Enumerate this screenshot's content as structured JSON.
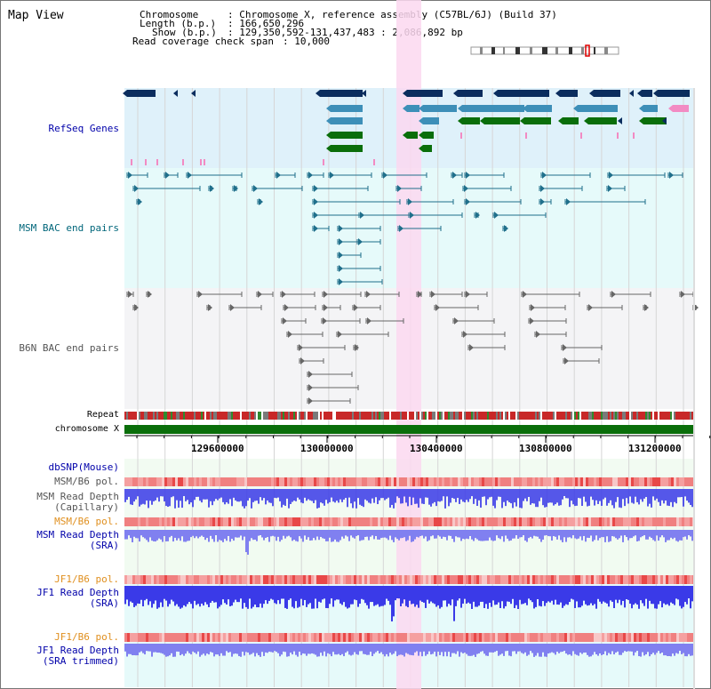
{
  "title": "Map View",
  "header": {
    "chromosome_key": "Chromosome",
    "chromosome_val": ": Chromosome X, reference assembly (C57BL/6J) (Build 37)",
    "length_key": "Length (b.p.)",
    "length_val": ": 166,650,296",
    "show_key": "Show (b.p.)",
    "show_val": ": 129,350,592-131,437,483 : 2,086,892 bp",
    "coverage_key": "Read coverage check span",
    "coverage_val": ": 10,000"
  },
  "tracks": {
    "refseq": "RefSeq Genes",
    "msm_bac": "MSM BAC end pairs",
    "b6n_bac": "B6N BAC end pairs",
    "repeat": "Repeat",
    "chromosome": "chromosome X",
    "dbsnp": "dbSNP(Mouse)",
    "msm_b6_pol_1": "MSM/B6 pol.",
    "msm_depth_cap_1": "MSM Read Depth",
    "msm_depth_cap_2": "(Capillary)",
    "msm_b6_pol_2": "MSM/B6 pol.",
    "msm_depth_sra_1": "MSM Read Depth",
    "msm_depth_sra_2": "(SRA)",
    "jf1_b6_pol_1": "JF1/B6 pol.",
    "jf1_depth_sra_1": "JF1 Read Depth",
    "jf1_depth_sra_2": "(SRA)",
    "jf1_b6_pol_2": "JF1/B6 pol.",
    "jf1_depth_trim_1": "JF1 Read Depth",
    "jf1_depth_trim_2": "(SRA trimmed)"
  },
  "axis": {
    "ticks": [
      "129600000",
      "130000000",
      "130400000",
      "130800000",
      "131200000"
    ]
  },
  "colors": {
    "refseq_bg": "#dff1fa",
    "bac_bg": "#e6fafa",
    "b6n_bg": "#f4f4f6",
    "highlight": "#fbd8f0",
    "gene_dark": "#0b2d5e",
    "gene_mid": "#3d8fb8",
    "gene_green": "#0a6e0a",
    "gene_pink": "#f28bc3",
    "bac_teal": "#1f6f8b",
    "bac_gray": "#666666",
    "chromosome_green": "#0a6e0a",
    "depth_blue": "#3a3ae8",
    "depth_light": "#8080f0",
    "pol_red": "#f28080",
    "label_blue": "#0000aa",
    "label_teal": "#00667a",
    "label_gray": "#555555",
    "label_orange": "#e09020"
  }
}
